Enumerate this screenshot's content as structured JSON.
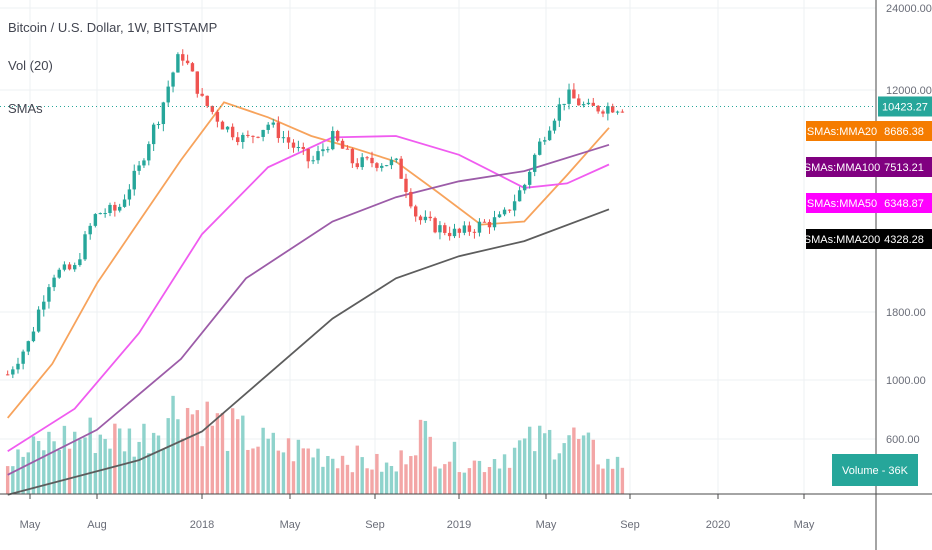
{
  "header": {
    "symbol_title": "Bitcoin / U.S. Dollar, 1W, BITSTAMP",
    "volume_indicator": "Vol (20)",
    "sma_indicator": "SMAs"
  },
  "colors": {
    "up": "#26a69a",
    "down": "#ef5350",
    "vol_up": "#8fd3cc",
    "vol_down": "#f3a6a6",
    "mma20": "#f7a35c",
    "mma50": "#f05cf0",
    "mma100": "#9c5ca8",
    "mma200": "#5d5d5d",
    "price_line": "#26a69a",
    "tag_mma20": "#f57c00",
    "tag_mma100": "#800080",
    "tag_mma50": "#ff00ff",
    "tag_mma200": "#000000",
    "tag_price": "#26a69a",
    "tag_volume": "#26a69a"
  },
  "chart_data": {
    "type": "candlestick",
    "y_scale": "log",
    "y_ticks": [
      "600.00",
      "1000.00",
      "1800.00",
      "12000.00",
      "24000.00"
    ],
    "y_tick_values": [
      600,
      1000,
      1800,
      12000,
      24000
    ],
    "x_ticks": [
      "May",
      "Aug",
      "2018",
      "May",
      "Sep",
      "2019",
      "May",
      "Sep",
      "2020",
      "May"
    ],
    "x_tick_dates": [
      "2017-05",
      "2017-08",
      "2018-01",
      "2018-05",
      "2018-09",
      "2019-01",
      "2019-05",
      "2019-09",
      "2020-01",
      "2020-05"
    ],
    "price_anchors": [
      {
        "date": "2017-04",
        "close": 1050
      },
      {
        "date": "2017-05",
        "close": 1400
      },
      {
        "date": "2017-06",
        "close": 2500
      },
      {
        "date": "2017-07",
        "close": 2600
      },
      {
        "date": "2017-08",
        "close": 4200
      },
      {
        "date": "2017-09",
        "close": 4300
      },
      {
        "date": "2017-10",
        "close": 6100
      },
      {
        "date": "2017-11",
        "close": 9800
      },
      {
        "date": "2017-12",
        "close": 16500
      },
      {
        "date": "2018-01",
        "close": 11000
      },
      {
        "date": "2018-02",
        "close": 8800
      },
      {
        "date": "2018-03",
        "close": 7800
      },
      {
        "date": "2018-04",
        "close": 9000
      },
      {
        "date": "2018-05",
        "close": 7600
      },
      {
        "date": "2018-06",
        "close": 6400
      },
      {
        "date": "2018-07",
        "close": 8000
      },
      {
        "date": "2018-08",
        "close": 6400
      },
      {
        "date": "2018-09",
        "close": 6500
      },
      {
        "date": "2018-10",
        "close": 6400
      },
      {
        "date": "2018-11",
        "close": 4000
      },
      {
        "date": "2018-12",
        "close": 3700
      },
      {
        "date": "2019-01",
        "close": 3500
      },
      {
        "date": "2019-02",
        "close": 3800
      },
      {
        "date": "2019-03",
        "close": 4000
      },
      {
        "date": "2019-04",
        "close": 5300
      },
      {
        "date": "2019-05",
        "close": 8500
      },
      {
        "date": "2019-06",
        "close": 11500
      },
      {
        "date": "2019-07",
        "close": 10200
      },
      {
        "date": "2019-08",
        "close": 10423.27
      }
    ],
    "series": [
      {
        "name": "SMAs:MMA20",
        "color_key": "mma20",
        "last_value": "8686.38",
        "points": [
          {
            "date": "2017-04",
            "v": 720
          },
          {
            "date": "2017-06",
            "v": 1150
          },
          {
            "date": "2017-08",
            "v": 2300
          },
          {
            "date": "2017-10",
            "v": 3900
          },
          {
            "date": "2017-12",
            "v": 6600
          },
          {
            "date": "2018-02",
            "v": 10800
          },
          {
            "date": "2018-04",
            "v": 9500
          },
          {
            "date": "2018-06",
            "v": 8100
          },
          {
            "date": "2018-08",
            "v": 7300
          },
          {
            "date": "2018-10",
            "v": 6500
          },
          {
            "date": "2018-12",
            "v": 5000
          },
          {
            "date": "2019-02",
            "v": 3800
          },
          {
            "date": "2019-04",
            "v": 3900
          },
          {
            "date": "2019-06",
            "v": 5800
          },
          {
            "date": "2019-08",
            "v": 8686.38
          }
        ]
      },
      {
        "name": "SMAs:MMA50",
        "color_key": "mma50",
        "last_value": "6348.87",
        "points": [
          {
            "date": "2017-04",
            "v": 540
          },
          {
            "date": "2017-07",
            "v": 780
          },
          {
            "date": "2017-10",
            "v": 1500
          },
          {
            "date": "2018-01",
            "v": 3500
          },
          {
            "date": "2018-04",
            "v": 6200
          },
          {
            "date": "2018-07",
            "v": 8000
          },
          {
            "date": "2018-10",
            "v": 8100
          },
          {
            "date": "2019-01",
            "v": 6900
          },
          {
            "date": "2019-04",
            "v": 5200
          },
          {
            "date": "2019-06",
            "v": 5400
          },
          {
            "date": "2019-08",
            "v": 6348.87
          }
        ]
      },
      {
        "name": "SMAs:MMA100",
        "color_key": "mma100",
        "last_value": "7513.21",
        "points": [
          {
            "date": "2017-04",
            "v": 440
          },
          {
            "date": "2017-08",
            "v": 650
          },
          {
            "date": "2017-12",
            "v": 1200
          },
          {
            "date": "2018-03",
            "v": 2400
          },
          {
            "date": "2018-07",
            "v": 3900
          },
          {
            "date": "2018-10",
            "v": 4800
          },
          {
            "date": "2019-01",
            "v": 5500
          },
          {
            "date": "2019-04",
            "v": 6000
          },
          {
            "date": "2019-08",
            "v": 7513.21
          }
        ]
      },
      {
        "name": "SMAs:MMA200",
        "color_key": "mma200",
        "last_value": "4328.28",
        "points": [
          {
            "date": "2017-04",
            "v": 370
          },
          {
            "date": "2017-10",
            "v": 500
          },
          {
            "date": "2018-01",
            "v": 640
          },
          {
            "date": "2018-04",
            "v": 1050
          },
          {
            "date": "2018-07",
            "v": 1700
          },
          {
            "date": "2018-10",
            "v": 2400
          },
          {
            "date": "2019-01",
            "v": 2900
          },
          {
            "date": "2019-04",
            "v": 3300
          },
          {
            "date": "2019-08",
            "v": 4328.28
          }
        ]
      }
    ],
    "volume_anchors": [
      {
        "date": "2017-04",
        "v": 0.25
      },
      {
        "date": "2017-06",
        "v": 0.45
      },
      {
        "date": "2017-08",
        "v": 0.5
      },
      {
        "date": "2017-10",
        "v": 0.45
      },
      {
        "date": "2017-12",
        "v": 0.75
      },
      {
        "date": "2018-02",
        "v": 0.55
      },
      {
        "date": "2018-04",
        "v": 0.4
      },
      {
        "date": "2018-06",
        "v": 0.35
      },
      {
        "date": "2018-08",
        "v": 0.3
      },
      {
        "date": "2018-10",
        "v": 0.2
      },
      {
        "date": "2018-11",
        "v": 0.55
      },
      {
        "date": "2018-12",
        "v": 0.35
      },
      {
        "date": "2019-02",
        "v": 0.25
      },
      {
        "date": "2019-04",
        "v": 0.4
      },
      {
        "date": "2019-06",
        "v": 0.5
      },
      {
        "date": "2019-08",
        "v": 0.25
      }
    ],
    "last_price": "10423.27",
    "volume_label": "Volume",
    "volume_value": "36K"
  }
}
